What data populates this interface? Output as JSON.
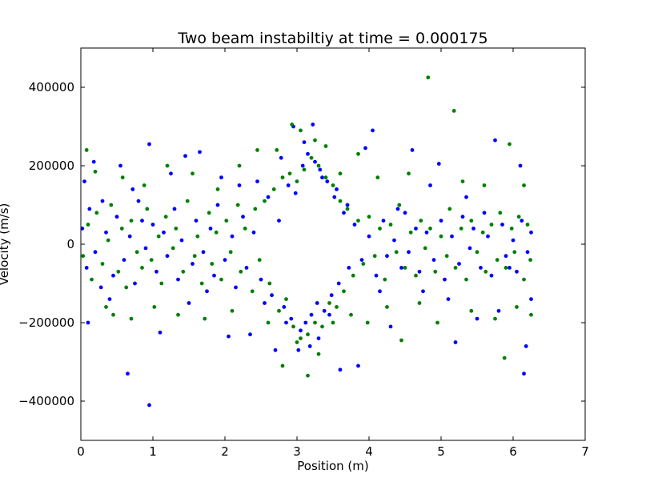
{
  "chart_data": {
    "type": "scatter",
    "title": "Two beam instabiltiy at time = 0.000175",
    "xlabel": "Position (m)",
    "ylabel": "Velocity (m/s)",
    "xlim": [
      0,
      7
    ],
    "ylim": [
      -500000,
      500000
    ],
    "xticks": [
      "0",
      "1",
      "2",
      "3",
      "4",
      "5",
      "6",
      "7"
    ],
    "yticks": [
      "-400000",
      "-200000",
      "0",
      "200000",
      "400000"
    ],
    "grid": false,
    "legend": "none",
    "series": [
      {
        "color": "#0000ff",
        "points": [
          [
            0.05,
            160000
          ],
          [
            0.1,
            -200000
          ],
          [
            0.18,
            210000
          ],
          [
            0.3,
            110000
          ],
          [
            0.4,
            -140000
          ],
          [
            0.55,
            200000
          ],
          [
            0.65,
            -330000
          ],
          [
            0.72,
            140000
          ],
          [
            0.85,
            60000
          ],
          [
            0.95,
            -410000
          ],
          [
            0.95,
            255000
          ],
          [
            1.1,
            -225000
          ],
          [
            1.25,
            180000
          ],
          [
            1.45,
            225000
          ],
          [
            1.5,
            -150000
          ],
          [
            1.65,
            235000
          ],
          [
            1.75,
            -120000
          ],
          [
            1.95,
            170000
          ],
          [
            2.05,
            -235000
          ],
          [
            2.2,
            150000
          ],
          [
            2.35,
            -230000
          ],
          [
            2.45,
            160000
          ],
          [
            2.55,
            -150000
          ],
          [
            2.7,
            -270000
          ],
          [
            2.78,
            220000
          ],
          [
            2.85,
            -200000
          ],
          [
            2.95,
            300000
          ],
          [
            3.02,
            -270000
          ],
          [
            3.1,
            260000
          ],
          [
            3.18,
            -260000
          ],
          [
            3.22,
            305000
          ],
          [
            3.3,
            -240000
          ],
          [
            3.35,
            170000
          ],
          [
            3.45,
            -180000
          ],
          [
            3.55,
            140000
          ],
          [
            3.6,
            -320000
          ],
          [
            3.7,
            100000
          ],
          [
            3.85,
            -310000
          ],
          [
            3.95,
            245000
          ],
          [
            4.05,
            290000
          ],
          [
            4.15,
            -120000
          ],
          [
            4.3,
            -210000
          ],
          [
            4.4,
            90000
          ],
          [
            4.6,
            240000
          ],
          [
            4.75,
            -120000
          ],
          [
            4.85,
            150000
          ],
          [
            4.97,
            205000
          ],
          [
            5.1,
            -140000
          ],
          [
            5.2,
            -250000
          ],
          [
            5.35,
            120000
          ],
          [
            5.5,
            -190000
          ],
          [
            5.6,
            80000
          ],
          [
            5.75,
            265000
          ],
          [
            5.8,
            -170000
          ],
          [
            5.95,
            -60000
          ],
          [
            6.1,
            200000
          ],
          [
            6.15,
            -330000
          ],
          [
            6.18,
            -260000
          ],
          [
            6.25,
            -140000
          ],
          [
            0.02,
            40000
          ],
          [
            0.08,
            -60000
          ],
          [
            0.12,
            90000
          ],
          [
            0.2,
            -20000
          ],
          [
            0.28,
            -110000
          ],
          [
            0.35,
            30000
          ],
          [
            0.45,
            -80000
          ],
          [
            0.5,
            70000
          ],
          [
            0.6,
            -40000
          ],
          [
            0.68,
            20000
          ],
          [
            0.75,
            -100000
          ],
          [
            0.8,
            110000
          ],
          [
            0.9,
            -10000
          ],
          [
            1.0,
            50000
          ],
          [
            1.05,
            -70000
          ],
          [
            1.15,
            30000
          ],
          [
            1.2,
            -30000
          ],
          [
            1.3,
            90000
          ],
          [
            1.35,
            -90000
          ],
          [
            1.4,
            10000
          ],
          [
            1.55,
            -50000
          ],
          [
            1.6,
            60000
          ],
          [
            1.7,
            -20000
          ],
          [
            1.8,
            40000
          ],
          [
            1.85,
            -80000
          ],
          [
            1.9,
            100000
          ],
          [
            2.0,
            -40000
          ],
          [
            2.1,
            20000
          ],
          [
            2.15,
            -110000
          ],
          [
            2.25,
            70000
          ],
          [
            2.3,
            -60000
          ],
          [
            2.4,
            30000
          ],
          [
            2.5,
            -90000
          ],
          [
            2.6,
            120000
          ],
          [
            2.65,
            -130000
          ],
          [
            2.75,
            60000
          ],
          [
            2.82,
            -160000
          ],
          [
            2.88,
            150000
          ],
          [
            2.92,
            -190000
          ],
          [
            2.98,
            130000
          ],
          [
            3.05,
            -220000
          ],
          [
            3.08,
            200000
          ],
          [
            3.12,
            -200000
          ],
          [
            3.15,
            230000
          ],
          [
            3.2,
            -180000
          ],
          [
            3.25,
            210000
          ],
          [
            3.28,
            -150000
          ],
          [
            3.32,
            190000
          ],
          [
            3.38,
            -170000
          ],
          [
            3.42,
            160000
          ],
          [
            3.48,
            -130000
          ],
          [
            3.52,
            120000
          ],
          [
            3.58,
            -100000
          ],
          [
            3.65,
            80000
          ],
          [
            3.72,
            -60000
          ],
          [
            3.8,
            50000
          ],
          [
            3.9,
            -40000
          ],
          [
            4.0,
            20000
          ],
          [
            4.1,
            -80000
          ],
          [
            4.2,
            60000
          ],
          [
            4.25,
            -30000
          ],
          [
            4.35,
            10000
          ],
          [
            4.45,
            -60000
          ],
          [
            4.5,
            80000
          ],
          [
            4.55,
            -20000
          ],
          [
            4.65,
            40000
          ],
          [
            4.7,
            -70000
          ],
          [
            4.8,
            30000
          ],
          [
            4.9,
            -40000
          ],
          [
            5.0,
            60000
          ],
          [
            5.05,
            -90000
          ],
          [
            5.15,
            20000
          ],
          [
            5.25,
            -50000
          ],
          [
            5.3,
            70000
          ],
          [
            5.4,
            -10000
          ],
          [
            5.45,
            40000
          ],
          [
            5.55,
            -60000
          ],
          [
            5.65,
            20000
          ],
          [
            5.7,
            -80000
          ],
          [
            5.85,
            50000
          ],
          [
            5.9,
            -30000
          ],
          [
            6.0,
            10000
          ],
          [
            6.05,
            -70000
          ],
          [
            6.12,
            60000
          ],
          [
            6.2,
            -20000
          ],
          [
            6.25,
            30000
          ]
        ]
      },
      {
        "color": "#008000",
        "points": [
          [
            0.08,
            240000
          ],
          [
            0.2,
            185000
          ],
          [
            0.35,
            -160000
          ],
          [
            0.45,
            -180000
          ],
          [
            0.58,
            170000
          ],
          [
            0.7,
            -190000
          ],
          [
            0.88,
            150000
          ],
          [
            1.02,
            -160000
          ],
          [
            1.2,
            200000
          ],
          [
            1.35,
            -180000
          ],
          [
            1.55,
            180000
          ],
          [
            1.72,
            -190000
          ],
          [
            1.9,
            140000
          ],
          [
            2.1,
            -170000
          ],
          [
            2.2,
            200000
          ],
          [
            2.45,
            240000
          ],
          [
            2.6,
            -200000
          ],
          [
            2.72,
            240000
          ],
          [
            2.8,
            -310000
          ],
          [
            2.93,
            305000
          ],
          [
            3.0,
            -250000
          ],
          [
            3.05,
            290000
          ],
          [
            3.15,
            -335000
          ],
          [
            3.25,
            265000
          ],
          [
            3.3,
            -280000
          ],
          [
            3.4,
            250000
          ],
          [
            3.5,
            -200000
          ],
          [
            3.6,
            180000
          ],
          [
            3.75,
            -180000
          ],
          [
            3.85,
            230000
          ],
          [
            3.98,
            -200000
          ],
          [
            4.12,
            170000
          ],
          [
            4.25,
            -160000
          ],
          [
            4.45,
            -245000
          ],
          [
            4.55,
            180000
          ],
          [
            4.7,
            -150000
          ],
          [
            4.82,
            425000
          ],
          [
            4.95,
            -200000
          ],
          [
            5.18,
            340000
          ],
          [
            5.3,
            160000
          ],
          [
            5.42,
            -170000
          ],
          [
            5.6,
            150000
          ],
          [
            5.75,
            -190000
          ],
          [
            5.88,
            -290000
          ],
          [
            5.95,
            255000
          ],
          [
            6.05,
            -160000
          ],
          [
            6.15,
            150000
          ],
          [
            6.25,
            -180000
          ],
          [
            0.03,
            -30000
          ],
          [
            0.1,
            50000
          ],
          [
            0.15,
            -90000
          ],
          [
            0.22,
            80000
          ],
          [
            0.3,
            -50000
          ],
          [
            0.38,
            10000
          ],
          [
            0.42,
            100000
          ],
          [
            0.52,
            -70000
          ],
          [
            0.57,
            40000
          ],
          [
            0.63,
            -110000
          ],
          [
            0.7,
            60000
          ],
          [
            0.78,
            -20000
          ],
          [
            0.85,
            -60000
          ],
          [
            0.92,
            90000
          ],
          [
            0.98,
            -40000
          ],
          [
            1.08,
            20000
          ],
          [
            1.12,
            -100000
          ],
          [
            1.18,
            70000
          ],
          [
            1.28,
            -10000
          ],
          [
            1.32,
            40000
          ],
          [
            1.42,
            -70000
          ],
          [
            1.48,
            110000
          ],
          [
            1.58,
            -30000
          ],
          [
            1.62,
            20000
          ],
          [
            1.68,
            -100000
          ],
          [
            1.78,
            80000
          ],
          [
            1.82,
            -50000
          ],
          [
            1.88,
            30000
          ],
          [
            1.95,
            -90000
          ],
          [
            2.02,
            60000
          ],
          [
            2.08,
            -20000
          ],
          [
            2.18,
            100000
          ],
          [
            2.22,
            -70000
          ],
          [
            2.28,
            40000
          ],
          [
            2.38,
            -120000
          ],
          [
            2.42,
            90000
          ],
          [
            2.48,
            -40000
          ],
          [
            2.55,
            110000
          ],
          [
            2.62,
            -100000
          ],
          [
            2.68,
            140000
          ],
          [
            2.75,
            -170000
          ],
          [
            2.8,
            170000
          ],
          [
            2.85,
            -140000
          ],
          [
            2.9,
            180000
          ],
          [
            2.95,
            -210000
          ],
          [
            3.0,
            160000
          ],
          [
            3.05,
            -240000
          ],
          [
            3.1,
            190000
          ],
          [
            3.15,
            -230000
          ],
          [
            3.2,
            220000
          ],
          [
            3.25,
            -200000
          ],
          [
            3.3,
            200000
          ],
          [
            3.35,
            -210000
          ],
          [
            3.4,
            170000
          ],
          [
            3.45,
            -150000
          ],
          [
            3.5,
            150000
          ],
          [
            3.55,
            -160000
          ],
          [
            3.6,
            110000
          ],
          [
            3.65,
            -120000
          ],
          [
            3.7,
            90000
          ],
          [
            3.78,
            -80000
          ],
          [
            3.85,
            60000
          ],
          [
            3.92,
            -50000
          ],
          [
            4.0,
            70000
          ],
          [
            4.08,
            -30000
          ],
          [
            4.15,
            40000
          ],
          [
            4.22,
            -90000
          ],
          [
            4.3,
            50000
          ],
          [
            4.38,
            -20000
          ],
          [
            4.42,
            100000
          ],
          [
            4.5,
            -60000
          ],
          [
            4.58,
            30000
          ],
          [
            4.65,
            -80000
          ],
          [
            4.72,
            60000
          ],
          [
            4.78,
            -10000
          ],
          [
            4.85,
            40000
          ],
          [
            4.92,
            -70000
          ],
          [
            5.0,
            20000
          ],
          [
            5.08,
            -30000
          ],
          [
            5.12,
            90000
          ],
          [
            5.2,
            -60000
          ],
          [
            5.28,
            40000
          ],
          [
            5.35,
            -90000
          ],
          [
            5.42,
            60000
          ],
          [
            5.5,
            -20000
          ],
          [
            5.58,
            30000
          ],
          [
            5.62,
            -70000
          ],
          [
            5.7,
            50000
          ],
          [
            5.78,
            -40000
          ],
          [
            5.82,
            80000
          ],
          [
            5.9,
            -60000
          ],
          [
            5.98,
            40000
          ],
          [
            6.02,
            -20000
          ],
          [
            6.08,
            70000
          ],
          [
            6.15,
            -90000
          ],
          [
            6.2,
            50000
          ],
          [
            6.24,
            -40000
          ]
        ]
      }
    ]
  }
}
